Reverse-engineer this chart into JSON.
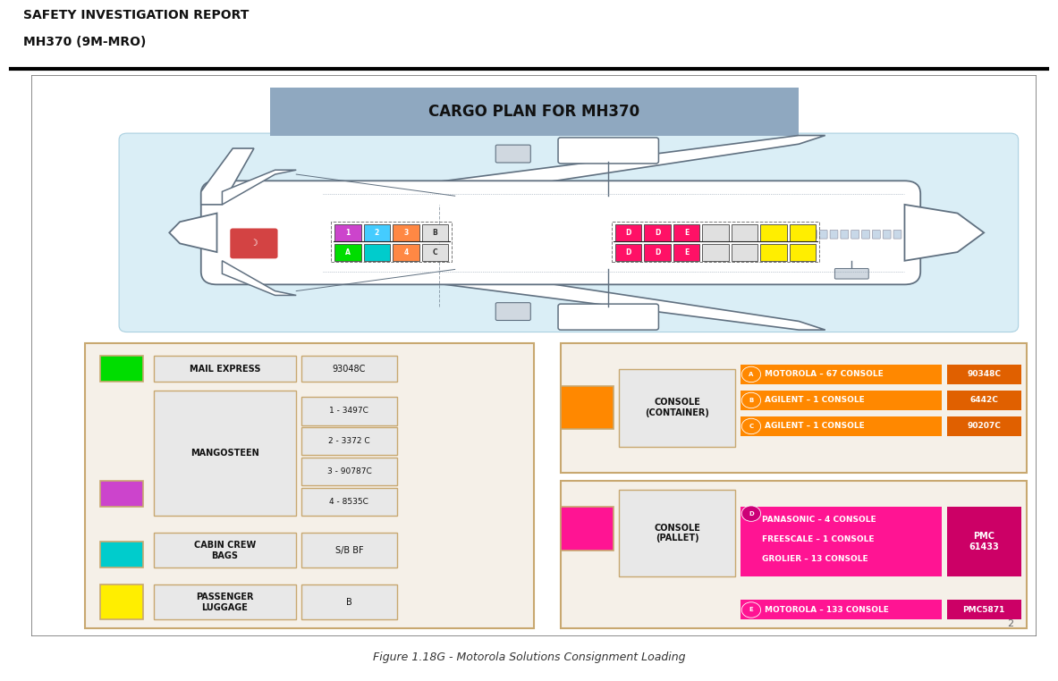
{
  "title_header_line1": "SAFETY INVESTIGATION REPORT",
  "title_header_line2": "MH370 (9M-MRO)",
  "cargo_title": "CARGO PLAN FOR MH370",
  "figure_caption": "Figure 1.18G - Motorola Solutions Consignment Loading",
  "page_number": "2",
  "border_color": "#c8a870",
  "title_bar_color": "#8fa8c0",
  "plane_bg": "#daeef6",
  "front_top": [
    {
      "label": "1",
      "color": "#cc44cc"
    },
    {
      "label": "2",
      "color": "#44ccff"
    },
    {
      "label": "3",
      "color": "#ff8844"
    },
    {
      "label": "B",
      "color": "#e0e0e0"
    }
  ],
  "front_bot": [
    {
      "label": "A",
      "color": "#00dd00"
    },
    {
      "label": "",
      "color": "#00cccc"
    },
    {
      "label": "4",
      "color": "#ff8844"
    },
    {
      "label": "C",
      "color": "#e0e0e0"
    }
  ],
  "rear_top": [
    {
      "label": "D",
      "color": "#ff1166"
    },
    {
      "label": "D",
      "color": "#ff1166"
    },
    {
      "label": "E",
      "color": "#ff1166"
    },
    {
      "label": "",
      "color": "#e0e0e0"
    },
    {
      "label": "",
      "color": "#e0e0e0"
    },
    {
      "label": "",
      "color": "#ffee00"
    },
    {
      "label": "",
      "color": "#ffee00"
    }
  ],
  "rear_bot": [
    {
      "label": "D",
      "color": "#ff1166"
    },
    {
      "label": "D",
      "color": "#ff1166"
    },
    {
      "label": "E",
      "color": "#ff1166"
    },
    {
      "label": "",
      "color": "#e0e0e0"
    },
    {
      "label": "",
      "color": "#e0e0e0"
    },
    {
      "label": "",
      "color": "#ffee00"
    },
    {
      "label": "",
      "color": "#ffee00"
    }
  ],
  "legend_border": "#c8a870",
  "ll_items": [
    {
      "color": "#00dd00",
      "label": "MAIL EXPRESS",
      "code": "93048C",
      "code2": ""
    },
    {
      "color": "#cc44cc",
      "label": "MANGOSTEEN",
      "code": "",
      "code2": ""
    },
    {
      "color": "#00cccc",
      "label": "CABIN CREW\nBAGS",
      "code": "S/B BF",
      "code2": ""
    },
    {
      "color": "#ffee00",
      "label": "PASSENGER\nLUGGAGE",
      "code": "B",
      "code2": ""
    }
  ],
  "mangosteen_codes": [
    "1 - 3497C",
    "2 - 3372 C",
    "3 - 90787C",
    "4 - 8535C"
  ],
  "container_items": [
    {
      "circle": "A",
      "text": "MOTOROLA – 67 CONSOLE",
      "code": "90348C"
    },
    {
      "circle": "B",
      "text": "AGILENT – 1 CONSOLE",
      "code": "6442C"
    },
    {
      "circle": "C",
      "text": "AGILENT – 1 CONSOLE",
      "code": "90207C"
    }
  ],
  "pallet_d_lines": [
    "PANASONIC – 4 CONSOLE",
    "FREESCALE – 1 CONSOLE",
    "GROLIER – 13 CONSOLE"
  ],
  "pallet_d_code": "PMC\n61433",
  "pallet_e_text": "MOTOROLA – 133 CONSOLE",
  "pallet_e_code": "PMC5871",
  "orange_color": "#ff8800",
  "pink_color": "#ff1493",
  "orange_code_color": "#ff6600",
  "pink_code_color": "#cc0066"
}
